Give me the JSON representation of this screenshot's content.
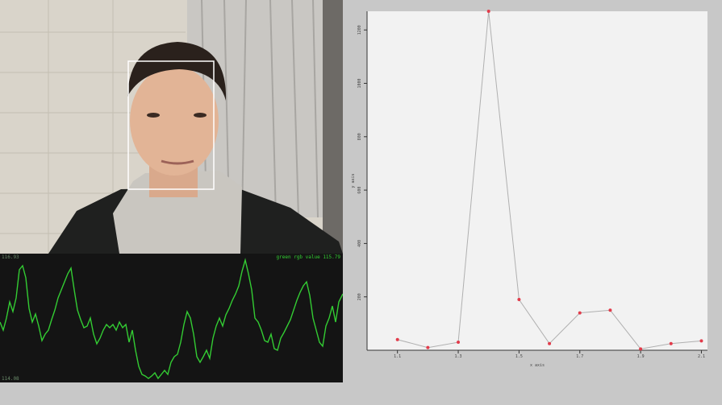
{
  "camera": {
    "face_box_label": "",
    "colors": {
      "box": "#ffffff"
    }
  },
  "signal_panel": {
    "title": "green rgb value 115.79",
    "max_label": "116.93",
    "min_label": "114.08",
    "colors": {
      "background": "#141414",
      "trace": "#33cc33"
    }
  },
  "chart_data": {
    "type": "line",
    "xlabel": "x axis",
    "ylabel": "y axis",
    "x": [
      1.1,
      1.2,
      1.3,
      1.35,
      1.4,
      1.45,
      1.5,
      1.55,
      1.6,
      1.65,
      1.7,
      1.75,
      1.8,
      1.85,
      1.9,
      1.95,
      2.0,
      2.05,
      2.1
    ],
    "xticks": [
      "1.1",
      "1.3",
      "1.5",
      "1.7",
      "1.9",
      "2.1"
    ],
    "xtick_values": [
      1.1,
      1.3,
      1.5,
      1.7,
      1.9,
      2.1
    ],
    "yticks": [
      "200",
      "400",
      "600",
      "800",
      "1000",
      "1200"
    ],
    "ytick_values": [
      200,
      400,
      600,
      800,
      1000,
      1200
    ],
    "ylim": [
      0,
      1270
    ],
    "xlim": [
      1.0,
      2.12
    ],
    "series": [
      {
        "points": [
          [
            1.1,
            40
          ],
          [
            1.2,
            10
          ],
          [
            1.3,
            30
          ],
          [
            1.4,
            1270
          ],
          [
            1.5,
            190
          ],
          [
            1.6,
            25
          ],
          [
            1.7,
            140
          ],
          [
            1.8,
            150
          ],
          [
            1.9,
            5
          ],
          [
            2.0,
            25
          ],
          [
            2.1,
            35
          ]
        ]
      }
    ],
    "grid": false,
    "colors": {
      "line": "#b0b0b0",
      "marker": "#e23b4a",
      "axes": "#333333",
      "background": "#f2f2f2"
    }
  }
}
